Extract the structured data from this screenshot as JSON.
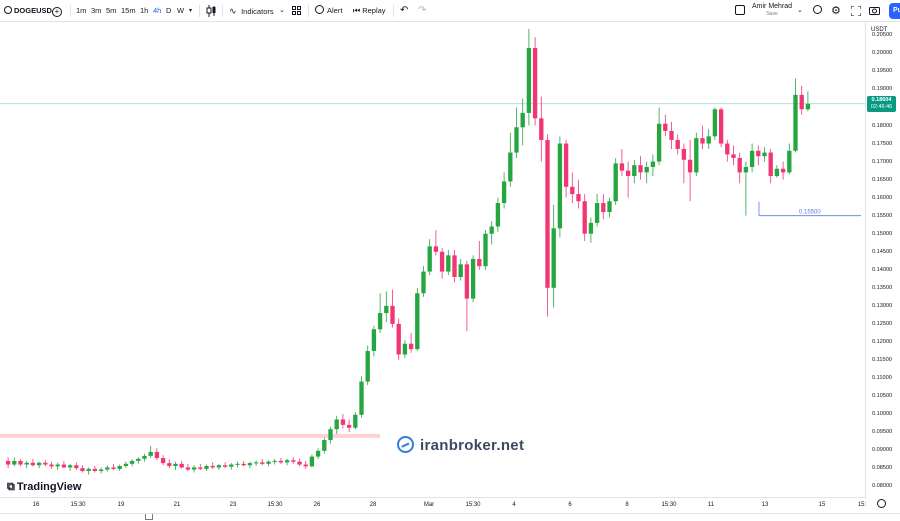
{
  "toolbar": {
    "symbol": "DOGEUSD",
    "intervals": [
      "1m",
      "3m",
      "5m",
      "15m",
      "1h",
      "4h",
      "D",
      "W"
    ],
    "active_interval": "4h",
    "indicators_label": "Indicators",
    "alert_label": "Alert",
    "replay_label": "Replay",
    "user_name": "Amir Mehrad",
    "user_status": "Save",
    "publish_label": "Pu"
  },
  "price_scale": {
    "currency": "USDT",
    "labels": [
      "0.20500",
      "0.20000",
      "0.19500",
      "0.19000",
      "0.18500",
      "0.18000",
      "0.17500",
      "0.17000",
      "0.16500",
      "0.16000",
      "0.15500",
      "0.15000",
      "0.14500",
      "0.14000",
      "0.13500",
      "0.13000",
      "0.12500",
      "0.12000",
      "0.11500",
      "0.11000",
      "0.10500",
      "0.10000",
      "0.09500",
      "0.09000",
      "0.08500",
      "0.08000"
    ],
    "current_price": "0.18604",
    "countdown": "02:46:46"
  },
  "time_axis": {
    "labels": [
      "16",
      "15:30",
      "19",
      "21",
      "23",
      "15:30",
      "26",
      "28",
      "Mar",
      "15:30",
      "4",
      "6",
      "8",
      "15:30",
      "11",
      "13",
      "15",
      "15:"
    ]
  },
  "annotations": {
    "price_line_label": "0.15500"
  },
  "watermarks": {
    "tradingview": "TradingView",
    "site": "iranbroker.net"
  },
  "colors": {
    "up": "#26a641",
    "down": "#f23674",
    "accent": "#2962ff",
    "zone": "#ffd1d7",
    "price_line": "#5b7fd6"
  },
  "chart_data": {
    "type": "candlestick",
    "symbol": "DOGEUSD",
    "interval": "4h",
    "ylim": [
      0.077,
      0.2087
    ],
    "candles": [
      {
        "o": 0.087,
        "h": 0.088,
        "l": 0.085,
        "c": 0.086
      },
      {
        "o": 0.086,
        "h": 0.088,
        "l": 0.0855,
        "c": 0.087
      },
      {
        "o": 0.087,
        "h": 0.0875,
        "l": 0.0855,
        "c": 0.086
      },
      {
        "o": 0.086,
        "h": 0.087,
        "l": 0.085,
        "c": 0.0865
      },
      {
        "o": 0.0865,
        "h": 0.0875,
        "l": 0.0855,
        "c": 0.0858
      },
      {
        "o": 0.0858,
        "h": 0.0868,
        "l": 0.085,
        "c": 0.0865
      },
      {
        "o": 0.0865,
        "h": 0.0872,
        "l": 0.0855,
        "c": 0.086
      },
      {
        "o": 0.086,
        "h": 0.0868,
        "l": 0.0848,
        "c": 0.0855
      },
      {
        "o": 0.0855,
        "h": 0.0865,
        "l": 0.0845,
        "c": 0.086
      },
      {
        "o": 0.086,
        "h": 0.087,
        "l": 0.085,
        "c": 0.0852
      },
      {
        "o": 0.0852,
        "h": 0.0862,
        "l": 0.0842,
        "c": 0.0858
      },
      {
        "o": 0.0858,
        "h": 0.0866,
        "l": 0.0845,
        "c": 0.085
      },
      {
        "o": 0.085,
        "h": 0.0858,
        "l": 0.0838,
        "c": 0.0842
      },
      {
        "o": 0.0842,
        "h": 0.0852,
        "l": 0.0832,
        "c": 0.0848
      },
      {
        "o": 0.0848,
        "h": 0.0856,
        "l": 0.0838,
        "c": 0.0842
      },
      {
        "o": 0.0842,
        "h": 0.0852,
        "l": 0.0835,
        "c": 0.0846
      },
      {
        "o": 0.0846,
        "h": 0.0858,
        "l": 0.084,
        "c": 0.0852
      },
      {
        "o": 0.0852,
        "h": 0.0862,
        "l": 0.0845,
        "c": 0.0848
      },
      {
        "o": 0.0848,
        "h": 0.086,
        "l": 0.0842,
        "c": 0.0856
      },
      {
        "o": 0.0856,
        "h": 0.0868,
        "l": 0.085,
        "c": 0.0862
      },
      {
        "o": 0.0862,
        "h": 0.0875,
        "l": 0.0855,
        "c": 0.087
      },
      {
        "o": 0.087,
        "h": 0.088,
        "l": 0.0862,
        "c": 0.0876
      },
      {
        "o": 0.0876,
        "h": 0.089,
        "l": 0.0868,
        "c": 0.0884
      },
      {
        "o": 0.0884,
        "h": 0.0912,
        "l": 0.0878,
        "c": 0.0895
      },
      {
        "o": 0.0895,
        "h": 0.0905,
        "l": 0.0872,
        "c": 0.0878
      },
      {
        "o": 0.0878,
        "h": 0.0886,
        "l": 0.0858,
        "c": 0.0864
      },
      {
        "o": 0.0864,
        "h": 0.0874,
        "l": 0.085,
        "c": 0.0856
      },
      {
        "o": 0.0856,
        "h": 0.0868,
        "l": 0.0845,
        "c": 0.0862
      },
      {
        "o": 0.0862,
        "h": 0.087,
        "l": 0.0848,
        "c": 0.0852
      },
      {
        "o": 0.0852,
        "h": 0.0862,
        "l": 0.0842,
        "c": 0.0846
      },
      {
        "o": 0.0846,
        "h": 0.0858,
        "l": 0.0838,
        "c": 0.0852
      },
      {
        "o": 0.0852,
        "h": 0.0862,
        "l": 0.0845,
        "c": 0.0848
      },
      {
        "o": 0.0848,
        "h": 0.086,
        "l": 0.0842,
        "c": 0.0856
      },
      {
        "o": 0.0856,
        "h": 0.0866,
        "l": 0.0848,
        "c": 0.0852
      },
      {
        "o": 0.0852,
        "h": 0.0862,
        "l": 0.0845,
        "c": 0.0858
      },
      {
        "o": 0.0858,
        "h": 0.0866,
        "l": 0.085,
        "c": 0.0854
      },
      {
        "o": 0.0854,
        "h": 0.0864,
        "l": 0.0846,
        "c": 0.086
      },
      {
        "o": 0.086,
        "h": 0.0868,
        "l": 0.0852,
        "c": 0.0862
      },
      {
        "o": 0.0862,
        "h": 0.087,
        "l": 0.0855,
        "c": 0.0858
      },
      {
        "o": 0.0858,
        "h": 0.0868,
        "l": 0.085,
        "c": 0.0864
      },
      {
        "o": 0.0864,
        "h": 0.0872,
        "l": 0.0856,
        "c": 0.0866
      },
      {
        "o": 0.0866,
        "h": 0.0875,
        "l": 0.0858,
        "c": 0.0862
      },
      {
        "o": 0.0862,
        "h": 0.0872,
        "l": 0.0855,
        "c": 0.0868
      },
      {
        "o": 0.0868,
        "h": 0.0876,
        "l": 0.086,
        "c": 0.087
      },
      {
        "o": 0.087,
        "h": 0.0878,
        "l": 0.0862,
        "c": 0.0866
      },
      {
        "o": 0.0866,
        "h": 0.0876,
        "l": 0.0858,
        "c": 0.0872
      },
      {
        "o": 0.0872,
        "h": 0.088,
        "l": 0.0862,
        "c": 0.0868
      },
      {
        "o": 0.0868,
        "h": 0.0876,
        "l": 0.0855,
        "c": 0.086
      },
      {
        "o": 0.086,
        "h": 0.087,
        "l": 0.0848,
        "c": 0.0855
      },
      {
        "o": 0.0855,
        "h": 0.0888,
        "l": 0.0852,
        "c": 0.0882
      },
      {
        "o": 0.0882,
        "h": 0.0905,
        "l": 0.0875,
        "c": 0.0898
      },
      {
        "o": 0.0898,
        "h": 0.0935,
        "l": 0.089,
        "c": 0.0928
      },
      {
        "o": 0.0928,
        "h": 0.0965,
        "l": 0.0918,
        "c": 0.0958
      },
      {
        "o": 0.0958,
        "h": 0.0995,
        "l": 0.0945,
        "c": 0.0985
      },
      {
        "o": 0.0985,
        "h": 0.1,
        "l": 0.096,
        "c": 0.097
      },
      {
        "o": 0.097,
        "h": 0.0985,
        "l": 0.095,
        "c": 0.0962
      },
      {
        "o": 0.0962,
        "h": 0.1005,
        "l": 0.0958,
        "c": 0.0998
      },
      {
        "o": 0.0998,
        "h": 0.1105,
        "l": 0.099,
        "c": 0.109
      },
      {
        "o": 0.109,
        "h": 0.119,
        "l": 0.108,
        "c": 0.1175
      },
      {
        "o": 0.1175,
        "h": 0.1245,
        "l": 0.116,
        "c": 0.1235
      },
      {
        "o": 0.1235,
        "h": 0.1335,
        "l": 0.1225,
        "c": 0.128
      },
      {
        "o": 0.128,
        "h": 0.134,
        "l": 0.1255,
        "c": 0.13
      },
      {
        "o": 0.13,
        "h": 0.1345,
        "l": 0.124,
        "c": 0.125
      },
      {
        "o": 0.125,
        "h": 0.1265,
        "l": 0.115,
        "c": 0.1165
      },
      {
        "o": 0.1165,
        "h": 0.1205,
        "l": 0.1155,
        "c": 0.1195
      },
      {
        "o": 0.1195,
        "h": 0.1225,
        "l": 0.117,
        "c": 0.118
      },
      {
        "o": 0.118,
        "h": 0.135,
        "l": 0.1175,
        "c": 0.1335
      },
      {
        "o": 0.1335,
        "h": 0.141,
        "l": 0.1325,
        "c": 0.1395
      },
      {
        "o": 0.1395,
        "h": 0.1485,
        "l": 0.1385,
        "c": 0.1465
      },
      {
        "o": 0.1465,
        "h": 0.151,
        "l": 0.144,
        "c": 0.145
      },
      {
        "o": 0.145,
        "h": 0.146,
        "l": 0.1375,
        "c": 0.1395
      },
      {
        "o": 0.1395,
        "h": 0.1455,
        "l": 0.1385,
        "c": 0.144
      },
      {
        "o": 0.144,
        "h": 0.1455,
        "l": 0.1365,
        "c": 0.138
      },
      {
        "o": 0.138,
        "h": 0.143,
        "l": 0.137,
        "c": 0.1415
      },
      {
        "o": 0.1415,
        "h": 0.1425,
        "l": 0.123,
        "c": 0.132
      },
      {
        "o": 0.132,
        "h": 0.144,
        "l": 0.131,
        "c": 0.143
      },
      {
        "o": 0.143,
        "h": 0.148,
        "l": 0.14,
        "c": 0.141
      },
      {
        "o": 0.141,
        "h": 0.151,
        "l": 0.14,
        "c": 0.15
      },
      {
        "o": 0.15,
        "h": 0.1535,
        "l": 0.147,
        "c": 0.152
      },
      {
        "o": 0.152,
        "h": 0.16,
        "l": 0.1505,
        "c": 0.1585
      },
      {
        "o": 0.1585,
        "h": 0.167,
        "l": 0.157,
        "c": 0.1645
      },
      {
        "o": 0.1645,
        "h": 0.178,
        "l": 0.163,
        "c": 0.1725
      },
      {
        "o": 0.1725,
        "h": 0.185,
        "l": 0.171,
        "c": 0.1795
      },
      {
        "o": 0.1795,
        "h": 0.1875,
        "l": 0.1745,
        "c": 0.1835
      },
      {
        "o": 0.1835,
        "h": 0.2068,
        "l": 0.18,
        "c": 0.2015
      },
      {
        "o": 0.2015,
        "h": 0.2045,
        "l": 0.18,
        "c": 0.182
      },
      {
        "o": 0.182,
        "h": 0.188,
        "l": 0.17,
        "c": 0.176
      },
      {
        "o": 0.176,
        "h": 0.1775,
        "l": 0.127,
        "c": 0.135
      },
      {
        "o": 0.135,
        "h": 0.158,
        "l": 0.1295,
        "c": 0.1515
      },
      {
        "o": 0.1515,
        "h": 0.177,
        "l": 0.149,
        "c": 0.175
      },
      {
        "o": 0.175,
        "h": 0.176,
        "l": 0.16,
        "c": 0.163
      },
      {
        "o": 0.163,
        "h": 0.167,
        "l": 0.1585,
        "c": 0.161
      },
      {
        "o": 0.161,
        "h": 0.165,
        "l": 0.157,
        "c": 0.159
      },
      {
        "o": 0.159,
        "h": 0.161,
        "l": 0.148,
        "c": 0.15
      },
      {
        "o": 0.15,
        "h": 0.1545,
        "l": 0.1475,
        "c": 0.153
      },
      {
        "o": 0.153,
        "h": 0.161,
        "l": 0.152,
        "c": 0.1585
      },
      {
        "o": 0.1585,
        "h": 0.161,
        "l": 0.154,
        "c": 0.156
      },
      {
        "o": 0.156,
        "h": 0.16,
        "l": 0.1545,
        "c": 0.159
      },
      {
        "o": 0.159,
        "h": 0.171,
        "l": 0.158,
        "c": 0.1695
      },
      {
        "o": 0.1695,
        "h": 0.1735,
        "l": 0.166,
        "c": 0.1675
      },
      {
        "o": 0.1675,
        "h": 0.17,
        "l": 0.16,
        "c": 0.166
      },
      {
        "o": 0.166,
        "h": 0.1705,
        "l": 0.164,
        "c": 0.169
      },
      {
        "o": 0.169,
        "h": 0.1715,
        "l": 0.165,
        "c": 0.167
      },
      {
        "o": 0.167,
        "h": 0.17,
        "l": 0.164,
        "c": 0.1685
      },
      {
        "o": 0.1685,
        "h": 0.172,
        "l": 0.166,
        "c": 0.17
      },
      {
        "o": 0.17,
        "h": 0.185,
        "l": 0.169,
        "c": 0.1805
      },
      {
        "o": 0.1805,
        "h": 0.183,
        "l": 0.177,
        "c": 0.1785
      },
      {
        "o": 0.1785,
        "h": 0.181,
        "l": 0.1735,
        "c": 0.176
      },
      {
        "o": 0.176,
        "h": 0.1775,
        "l": 0.172,
        "c": 0.1735
      },
      {
        "o": 0.1735,
        "h": 0.175,
        "l": 0.164,
        "c": 0.1705
      },
      {
        "o": 0.1705,
        "h": 0.176,
        "l": 0.159,
        "c": 0.167
      },
      {
        "o": 0.167,
        "h": 0.178,
        "l": 0.166,
        "c": 0.1765
      },
      {
        "o": 0.1765,
        "h": 0.18,
        "l": 0.1735,
        "c": 0.175
      },
      {
        "o": 0.175,
        "h": 0.179,
        "l": 0.1735,
        "c": 0.177
      },
      {
        "o": 0.177,
        "h": 0.185,
        "l": 0.176,
        "c": 0.1845
      },
      {
        "o": 0.1845,
        "h": 0.185,
        "l": 0.174,
        "c": 0.175
      },
      {
        "o": 0.175,
        "h": 0.176,
        "l": 0.17,
        "c": 0.172
      },
      {
        "o": 0.172,
        "h": 0.1745,
        "l": 0.169,
        "c": 0.171
      },
      {
        "o": 0.171,
        "h": 0.1725,
        "l": 0.164,
        "c": 0.167
      },
      {
        "o": 0.167,
        "h": 0.17,
        "l": 0.155,
        "c": 0.1685
      },
      {
        "o": 0.1685,
        "h": 0.175,
        "l": 0.167,
        "c": 0.173
      },
      {
        "o": 0.173,
        "h": 0.1745,
        "l": 0.169,
        "c": 0.1715
      },
      {
        "o": 0.1715,
        "h": 0.174,
        "l": 0.17,
        "c": 0.1725
      },
      {
        "o": 0.1725,
        "h": 0.1735,
        "l": 0.164,
        "c": 0.166
      },
      {
        "o": 0.166,
        "h": 0.169,
        "l": 0.1655,
        "c": 0.168
      },
      {
        "o": 0.168,
        "h": 0.17,
        "l": 0.165,
        "c": 0.167
      },
      {
        "o": 0.167,
        "h": 0.175,
        "l": 0.1665,
        "c": 0.173
      },
      {
        "o": 0.173,
        "h": 0.193,
        "l": 0.1725,
        "c": 0.1885
      },
      {
        "o": 0.1885,
        "h": 0.191,
        "l": 0.183,
        "c": 0.1845
      },
      {
        "o": 0.1845,
        "h": 0.1895,
        "l": 0.184,
        "c": 0.186
      }
    ],
    "current_price_line": 0.18604,
    "horizontal_line": 0.155,
    "zone": [
      0.0935,
      0.0945
    ]
  }
}
